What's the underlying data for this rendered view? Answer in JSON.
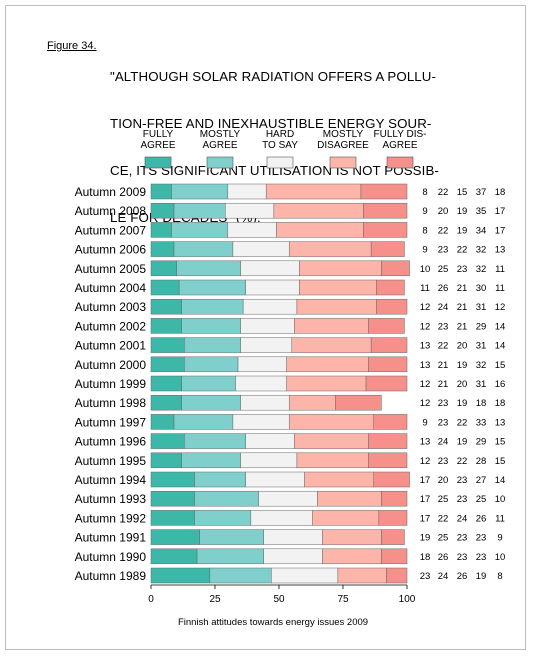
{
  "figure_label": "Figure 34.",
  "title_lines": [
    "\"ALTHOUGH SOLAR RADIATION OFFERS A POLLU-",
    "TION-FREE AND INEXHAUSTIBLE ENERGY SOUR-",
    "CE, ITS SIGNIFICANT UTILISATION IS NOT POSSIB-",
    "LE FOR DECADES\" (%)."
  ],
  "chart_data": {
    "type": "bar",
    "orientation": "horizontal",
    "stacked": true,
    "title": "\"ALTHOUGH SOLAR RADIATION OFFERS A POLLUTION-FREE AND INEXHAUSTIBLE ENERGY SOURCE, ITS SIGNIFICANT UTILISATION IS NOT POSSIBLE FOR DECADES\" (%).",
    "xlabel": "",
    "ylabel": "",
    "xlim": [
      0,
      100
    ],
    "xticks": [
      "0",
      "25",
      "50",
      "75",
      "100"
    ],
    "grid": false,
    "legend_position": "top",
    "categories": [
      "Autumn 2009",
      "Autumn 2008",
      "Autumn 2007",
      "Autumn 2006",
      "Autumn 2005",
      "Autumn 2004",
      "Autumn 2003",
      "Autumn 2002",
      "Autumn 2001",
      "Autumn 2000",
      "Autumn 1999",
      "Autumn 1998",
      "Autumn 1997",
      "Autumn 1996",
      "Autumn 1995",
      "Autumn 1994",
      "Autumn 1993",
      "Autumn 1992",
      "Autumn 1991",
      "Autumn 1990",
      "Autumn 1989"
    ],
    "series": [
      {
        "name": "FULLY AGREE",
        "legend_lines": [
          "FULLY",
          "AGREE"
        ],
        "color": "#3db8a8",
        "values": [
          8,
          9,
          8,
          9,
          10,
          11,
          12,
          12,
          13,
          13,
          12,
          12,
          9,
          13,
          12,
          17,
          17,
          17,
          19,
          18,
          23
        ]
      },
      {
        "name": "MOSTLY AGREE",
        "legend_lines": [
          "MOSTLY",
          "AGREE"
        ],
        "color": "#7fd0cc",
        "values": [
          22,
          20,
          22,
          23,
          25,
          26,
          24,
          23,
          22,
          21,
          21,
          23,
          23,
          24,
          23,
          20,
          25,
          22,
          25,
          26,
          24
        ]
      },
      {
        "name": "HARD TO SAY",
        "legend_lines": [
          "HARD",
          "TO SAY"
        ],
        "color": "#f2f2f2",
        "values": [
          15,
          19,
          19,
          22,
          23,
          21,
          21,
          21,
          20,
          19,
          20,
          19,
          22,
          19,
          22,
          23,
          23,
          24,
          23,
          23,
          26
        ]
      },
      {
        "name": "MOSTLY DISAGREE",
        "legend_lines": [
          "MOSTLY",
          "DISAGREE"
        ],
        "color": "#fdb5aa",
        "values": [
          37,
          35,
          34,
          32,
          32,
          30,
          31,
          29,
          31,
          32,
          31,
          18,
          33,
          29,
          28,
          27,
          25,
          26,
          23,
          23,
          19
        ]
      },
      {
        "name": "FULLY DISAGREE",
        "legend_lines": [
          "FULLY DIS-",
          "AGREE"
        ],
        "color": "#f5918a",
        "values": [
          18,
          17,
          17,
          13,
          11,
          11,
          12,
          14,
          14,
          15,
          16,
          18,
          13,
          15,
          15,
          14,
          10,
          11,
          9,
          10,
          8
        ]
      }
    ]
  },
  "footer": "Finnish attitudes towards energy issues 2009"
}
